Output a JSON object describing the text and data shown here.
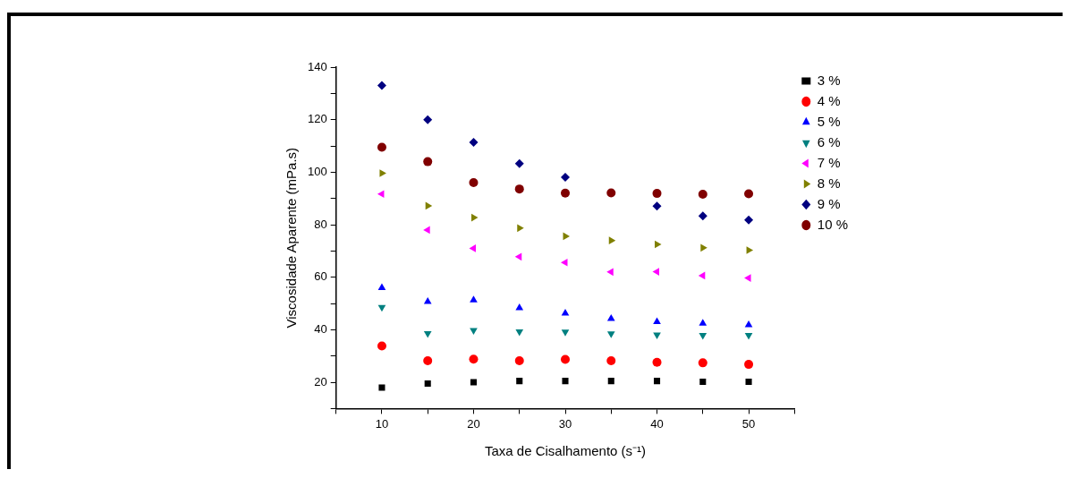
{
  "chart_data": {
    "type": "scatter",
    "xlabel": "Taxa de Cisalhamento (s⁻¹)",
    "ylabel": "Viscosidade Aparente (mPa.s)",
    "x": [
      10,
      15,
      20,
      25,
      30,
      35,
      40,
      45,
      50
    ],
    "xlim": [
      5,
      55
    ],
    "xticks": [
      {
        "value": 5,
        "label": null
      },
      10,
      {
        "value": 15,
        "label": null
      },
      20,
      {
        "value": 25,
        "label": null
      },
      30,
      {
        "value": 35,
        "label": null
      },
      40,
      {
        "value": 45,
        "label": null
      },
      50,
      {
        "value": 55,
        "label": null
      }
    ],
    "ylim": [
      10,
      140
    ],
    "yticks": [
      {
        "value": 10,
        "label": null
      },
      20,
      {
        "value": 30,
        "label": null
      },
      40,
      {
        "value": 50,
        "label": null
      },
      60,
      {
        "value": 70,
        "label": null
      },
      80,
      {
        "value": 90,
        "label": null
      },
      100,
      {
        "value": 110,
        "label": null
      },
      120,
      {
        "value": 130,
        "label": null
      },
      140
    ],
    "grid": false,
    "legend": "right",
    "series": [
      {
        "name": "3 %",
        "color": "#000000",
        "marker": "square",
        "values": [
          18,
          19.5,
          20,
          20.5,
          20.5,
          20.5,
          20.5,
          20.2,
          20.2
        ]
      },
      {
        "name": "4 %",
        "color": "#ff0000",
        "marker": "circle",
        "values": [
          33.8,
          28.2,
          28.8,
          28.2,
          28.7,
          28.2,
          27.6,
          27.4,
          26.8
        ]
      },
      {
        "name": "5 %",
        "color": "#0000ff",
        "marker": "triangle",
        "values": [
          56,
          50.7,
          51.3,
          48.3,
          46.3,
          44.2,
          43,
          42.4,
          41.8
        ]
      },
      {
        "name": "6 %",
        "color": "#008080",
        "marker": "triangle",
        "values": [
          48.6,
          38.6,
          39.8,
          39.3,
          39.2,
          38.5,
          38.1,
          37.9,
          37.9
        ]
      },
      {
        "name": "7 %",
        "color": "#ff00ff",
        "marker": "triangle",
        "values": [
          91.7,
          78,
          71,
          67.8,
          65.6,
          62,
          62.1,
          60.6,
          59.7
        ]
      },
      {
        "name": "8 %",
        "color": "#808000",
        "marker": "triangle",
        "values": [
          99.6,
          87.2,
          82.7,
          78.7,
          75.6,
          74,
          72.5,
          71.2,
          70.3
        ]
      },
      {
        "name": "9 %",
        "color": "#000080",
        "marker": "diamond",
        "values": [
          133,
          120,
          111.4,
          103.3,
          98.1,
          null,
          87.1,
          83.3,
          81.8
        ]
      },
      {
        "name": "10 %",
        "color": "#800000",
        "marker": "circle",
        "values": [
          109.5,
          104,
          96,
          93.6,
          92,
          92.1,
          91.9,
          91.6,
          91.8
        ]
      }
    ]
  }
}
